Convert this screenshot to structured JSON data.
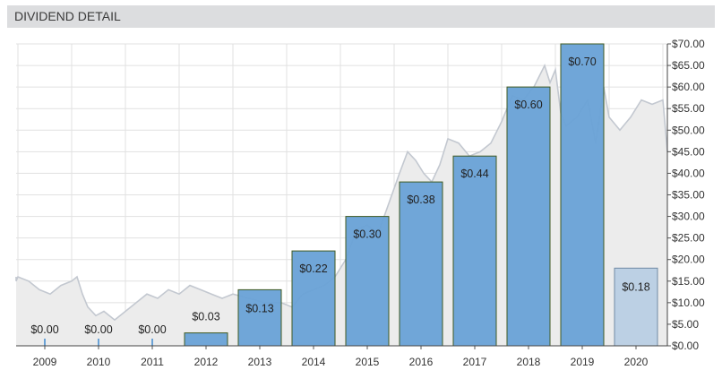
{
  "header": {
    "title": "DIVIDEND DETAIL"
  },
  "colors": {
    "bar_fill": "#6aa2d6",
    "bar_stroke": "#3f5a22",
    "bar_highlight": "#5b9be0",
    "projected_fill": "#b9cfe4",
    "projected_stroke": "#6f8aa3",
    "price_area": "#ececec",
    "price_line": "#c3c8d0",
    "grid": "#e1e1e1"
  },
  "chart_data": {
    "type": "bar",
    "title": "DIVIDEND DETAIL",
    "categories": [
      "2009",
      "2010",
      "2011",
      "2012",
      "2013",
      "2014",
      "2015",
      "2016",
      "2017",
      "2018",
      "2019",
      "2020"
    ],
    "series": [
      {
        "values": [
          0.0,
          0.0,
          0.0,
          0.03,
          0.13,
          0.22,
          0.3,
          0.38,
          0.44,
          0.6,
          0.7,
          0.18
        ],
        "labels": [
          "$0.00",
          "$0.00",
          "$0.00",
          "$0.03",
          "$0.13",
          "$0.22",
          "$0.30",
          "$0.38",
          "$0.44",
          "$0.60",
          "$0.70",
          "$0.18"
        ]
      }
    ],
    "projected_index": 11,
    "price_background": {
      "type": "area",
      "points": [
        [
          2008.5,
          16
        ],
        [
          2008.8,
          15
        ],
        [
          2009.0,
          16
        ],
        [
          2009.2,
          15
        ],
        [
          2009.4,
          13
        ],
        [
          2009.6,
          12
        ],
        [
          2009.8,
          14
        ],
        [
          2010.0,
          15
        ],
        [
          2010.1,
          16
        ],
        [
          2010.2,
          12
        ],
        [
          2010.3,
          9
        ],
        [
          2010.45,
          7
        ],
        [
          2010.6,
          8
        ],
        [
          2010.8,
          6
        ],
        [
          2011.0,
          8
        ],
        [
          2011.2,
          10
        ],
        [
          2011.4,
          12
        ],
        [
          2011.6,
          11
        ],
        [
          2011.8,
          13
        ],
        [
          2012.0,
          12
        ],
        [
          2012.2,
          14
        ],
        [
          2012.4,
          13
        ],
        [
          2012.6,
          12
        ],
        [
          2012.8,
          11
        ],
        [
          2013.0,
          12
        ],
        [
          2013.3,
          11
        ],
        [
          2013.6,
          10
        ],
        [
          2013.9,
          10
        ],
        [
          2014.1,
          9
        ],
        [
          2014.3,
          12
        ],
        [
          2014.5,
          13
        ],
        [
          2014.7,
          14
        ],
        [
          2014.9,
          16
        ],
        [
          2015.1,
          20
        ],
        [
          2015.3,
          27
        ],
        [
          2015.5,
          28
        ],
        [
          2015.7,
          26
        ],
        [
          2015.9,
          33
        ],
        [
          2016.1,
          40
        ],
        [
          2016.25,
          45
        ],
        [
          2016.4,
          43
        ],
        [
          2016.55,
          40
        ],
        [
          2016.7,
          38
        ],
        [
          2016.85,
          42
        ],
        [
          2017.0,
          48
        ],
        [
          2017.2,
          47
        ],
        [
          2017.4,
          44
        ],
        [
          2017.6,
          45
        ],
        [
          2017.8,
          47
        ],
        [
          2018.0,
          52
        ],
        [
          2018.2,
          58
        ],
        [
          2018.4,
          57
        ],
        [
          2018.6,
          60
        ],
        [
          2018.8,
          65
        ],
        [
          2018.9,
          61
        ],
        [
          2019.0,
          64
        ],
        [
          2019.1,
          54
        ],
        [
          2019.2,
          51
        ],
        [
          2019.4,
          53
        ],
        [
          2019.6,
          57
        ],
        [
          2019.75,
          47
        ],
        [
          2019.9,
          60
        ],
        [
          2020.0,
          53
        ],
        [
          2020.2,
          50
        ],
        [
          2020.4,
          53
        ],
        [
          2020.6,
          57
        ],
        [
          2020.8,
          56
        ],
        [
          2021.0,
          57
        ],
        [
          2021.1,
          45
        ]
      ]
    },
    "y_axis": {
      "position": "right",
      "ylim": [
        0,
        70
      ],
      "ticks": [
        "$0.00",
        "$5.00",
        "$10.00",
        "$15.00",
        "$20.00",
        "$25.00",
        "$30.00",
        "$35.00",
        "$40.00",
        "$45.00",
        "$50.00",
        "$55.00",
        "$60.00",
        "$65.00",
        "$70.00"
      ]
    },
    "grid": true,
    "legend": "none"
  }
}
